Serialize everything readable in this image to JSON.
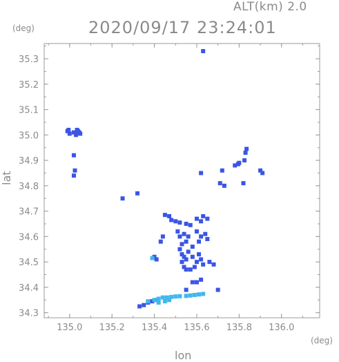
{
  "header": {
    "altitude": "ALT(km) 2.0",
    "timestamp": "2020/09/17 23:24:01"
  },
  "axes": {
    "x_unit": "(deg)",
    "y_unit": "(deg)",
    "x_label": "lon",
    "y_label": "lat"
  },
  "chart_data": {
    "type": "scatter",
    "xlabel": "lon",
    "ylabel": "lat",
    "xlim": [
      134.88,
      136.18
    ],
    "ylim": [
      34.28,
      35.36
    ],
    "x_ticks": [
      135.0,
      135.2,
      135.4,
      135.6,
      135.8,
      136.0
    ],
    "y_ticks": [
      34.3,
      34.4,
      34.5,
      34.6,
      34.7,
      34.8,
      34.9,
      35.0,
      35.1,
      35.2,
      35.3
    ],
    "x_tick_labels": [
      "135.0",
      "135.2",
      "135.4",
      "135.6",
      "135.8",
      "136.0"
    ],
    "y_tick_labels": [
      "34.3",
      "34.4",
      "34.5",
      "34.6",
      "34.7",
      "34.8",
      "34.9",
      "35.0",
      "35.1",
      "35.2",
      "35.3"
    ],
    "grid": false,
    "colors": {
      "strong": "#3a55e6",
      "weak": "#40b8ec",
      "axis": "#9a9a9a"
    },
    "series": [
      {
        "color": "#3a55e6",
        "points": [
          [
            134.99,
            35.015
          ],
          [
            135.0,
            35.005
          ],
          [
            134.995,
            35.02
          ],
          [
            135.02,
            35.01
          ],
          [
            135.03,
            35.0
          ],
          [
            135.04,
            35.015
          ],
          [
            135.05,
            35.005
          ],
          [
            135.035,
            35.02
          ],
          [
            135.045,
            35.01
          ],
          [
            135.02,
            34.92
          ],
          [
            135.025,
            34.86
          ],
          [
            135.02,
            34.84
          ],
          [
            135.25,
            34.75
          ],
          [
            135.32,
            34.77
          ],
          [
            135.63,
            35.33
          ],
          [
            135.62,
            34.85
          ],
          [
            135.72,
            34.86
          ],
          [
            135.71,
            34.81
          ],
          [
            135.73,
            34.8
          ],
          [
            135.78,
            34.88
          ],
          [
            135.795,
            34.885
          ],
          [
            135.8,
            34.89
          ],
          [
            135.83,
            34.93
          ],
          [
            135.825,
            34.9
          ],
          [
            135.835,
            34.945
          ],
          [
            135.82,
            34.81
          ],
          [
            135.9,
            34.86
          ],
          [
            135.91,
            34.85
          ],
          [
            135.45,
            34.685
          ],
          [
            135.47,
            34.68
          ],
          [
            135.48,
            34.665
          ],
          [
            135.5,
            34.66
          ],
          [
            135.52,
            34.655
          ],
          [
            135.55,
            34.65
          ],
          [
            135.57,
            34.645
          ],
          [
            135.6,
            34.67
          ],
          [
            135.63,
            34.68
          ],
          [
            135.65,
            34.67
          ],
          [
            135.62,
            34.66
          ],
          [
            135.51,
            34.62
          ],
          [
            135.52,
            34.6
          ],
          [
            135.54,
            34.61
          ],
          [
            135.56,
            34.6
          ],
          [
            135.55,
            34.58
          ],
          [
            135.53,
            34.57
          ],
          [
            135.58,
            34.56
          ],
          [
            135.6,
            34.62
          ],
          [
            135.62,
            34.6
          ],
          [
            135.61,
            34.58
          ],
          [
            135.64,
            34.61
          ],
          [
            135.65,
            34.59
          ],
          [
            135.44,
            34.6
          ],
          [
            135.43,
            34.58
          ],
          [
            135.52,
            34.55
          ],
          [
            135.53,
            34.53
          ],
          [
            135.54,
            34.52
          ],
          [
            135.55,
            34.51
          ],
          [
            135.56,
            34.54
          ],
          [
            135.58,
            34.52
          ],
          [
            135.6,
            34.5
          ],
          [
            135.61,
            34.53
          ],
          [
            135.62,
            34.51
          ],
          [
            135.63,
            34.49
          ],
          [
            135.59,
            34.48
          ],
          [
            135.57,
            34.47
          ],
          [
            135.55,
            34.47
          ],
          [
            135.66,
            34.5
          ],
          [
            135.68,
            34.49
          ],
          [
            135.53,
            34.5
          ],
          [
            135.54,
            34.48
          ],
          [
            135.4,
            34.52
          ],
          [
            135.41,
            34.51
          ],
          [
            135.58,
            34.42
          ],
          [
            135.6,
            34.42
          ],
          [
            135.62,
            34.43
          ],
          [
            135.55,
            34.39
          ],
          [
            135.7,
            34.39
          ],
          [
            135.35,
            34.33
          ],
          [
            135.37,
            34.34
          ],
          [
            135.39,
            34.345
          ],
          [
            135.41,
            34.35
          ],
          [
            135.33,
            34.325
          ]
        ]
      },
      {
        "color": "#40b8ec",
        "points": [
          [
            135.37,
            34.345
          ],
          [
            135.4,
            34.35
          ],
          [
            135.42,
            34.355
          ],
          [
            135.44,
            34.36
          ],
          [
            135.46,
            34.36
          ],
          [
            135.48,
            34.362
          ],
          [
            135.5,
            34.364
          ],
          [
            135.52,
            34.365
          ],
          [
            135.55,
            34.366
          ],
          [
            135.57,
            34.368
          ],
          [
            135.59,
            34.37
          ],
          [
            135.61,
            34.372
          ],
          [
            135.63,
            34.374
          ],
          [
            135.42,
            34.34
          ],
          [
            135.45,
            34.345
          ],
          [
            135.47,
            34.35
          ],
          [
            135.39,
            34.515
          ]
        ]
      }
    ]
  }
}
